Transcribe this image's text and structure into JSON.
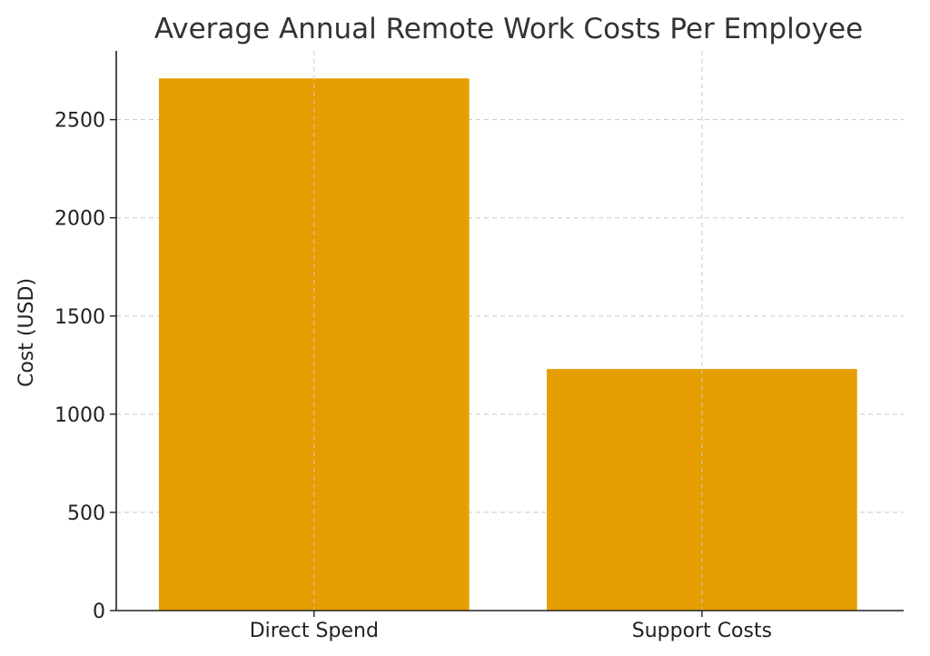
{
  "chart_data": {
    "type": "bar",
    "title": "Average Annual Remote Work Costs Per Employee",
    "xlabel": "",
    "ylabel": "Cost (USD)",
    "categories": [
      "Direct Spend",
      "Support Costs"
    ],
    "values": [
      2710,
      1230
    ],
    "ylim": [
      0,
      2850
    ],
    "yticks": [
      0,
      500,
      1000,
      1500,
      2000,
      2500
    ],
    "bar_color": "#E69F00",
    "grid": true,
    "legend": "none"
  }
}
